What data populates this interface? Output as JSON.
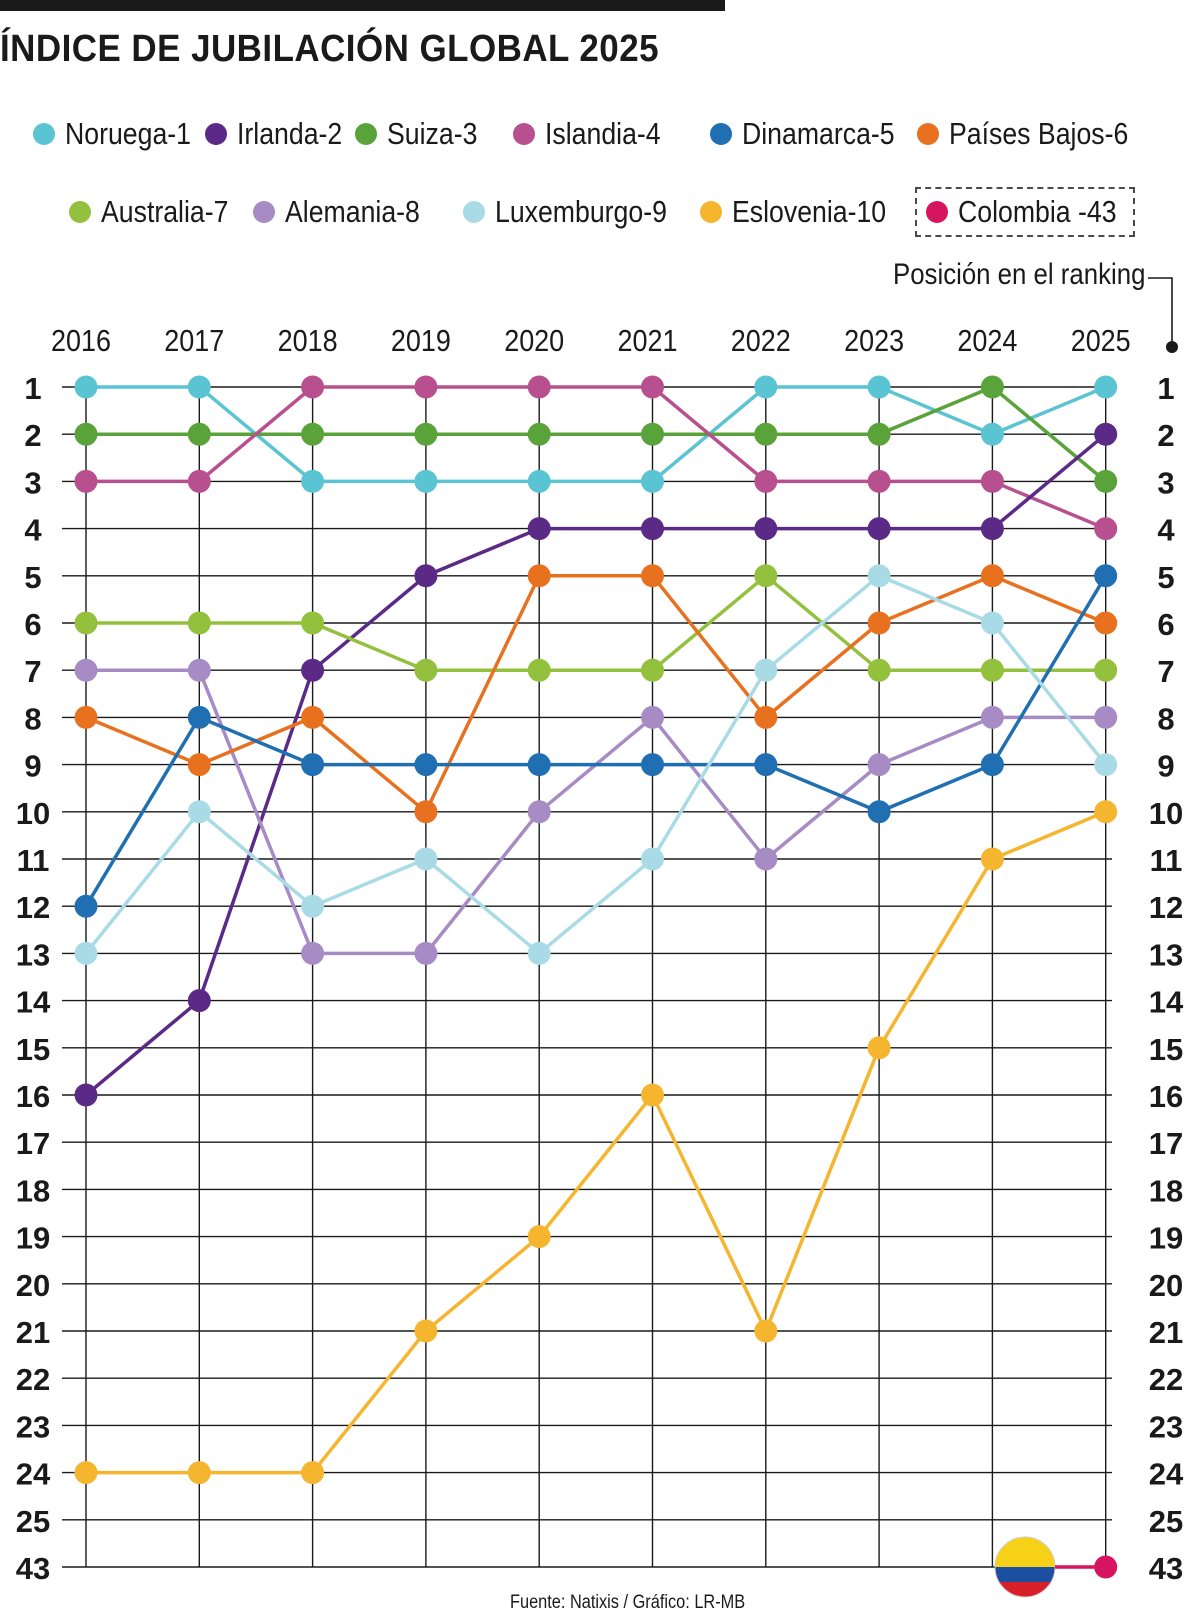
{
  "title": "ÍNDICE DE JUBILACIÓN GLOBAL 2025",
  "ranking_note": "Posición en el ranking",
  "source": "Fuente: Natixis / Gráfico: LR-MB",
  "legend": [
    {
      "label": "Noruega-1",
      "color": "#5bc4d3"
    },
    {
      "label": "Irlanda-2",
      "color": "#5b2a86"
    },
    {
      "label": "Suiza-3",
      "color": "#5aa33a"
    },
    {
      "label": "Islandia-4",
      "color": "#b8508f"
    },
    {
      "label": "Dinamarca-5",
      "color": "#1f6fb2"
    },
    {
      "label": "Países Bajos-6",
      "color": "#e8711f"
    },
    {
      "label": "Australia-7",
      "color": "#93c13d"
    },
    {
      "label": "Alemania-8",
      "color": "#a78bc4"
    },
    {
      "label": "Luxemburgo-9",
      "color": "#a9dbe6"
    },
    {
      "label": "Eslovenia-10",
      "color": "#f5b52e"
    },
    {
      "label": "Colombia -43",
      "color": "#d6145f"
    }
  ],
  "chart_data": {
    "type": "line",
    "title": "ÍNDICE DE JUBILACIÓN GLOBAL 2025",
    "xlabel": "",
    "ylabel": "Posición en el ranking",
    "x": [
      "2016",
      "2017",
      "2018",
      "2019",
      "2020",
      "2021",
      "2022",
      "2023",
      "2024",
      "2025"
    ],
    "y_ticks": [
      "1",
      "2",
      "3",
      "4",
      "5",
      "6",
      "7",
      "8",
      "9",
      "10",
      "11",
      "12",
      "13",
      "14",
      "15",
      "16",
      "17",
      "18",
      "19",
      "20",
      "21",
      "22",
      "23",
      "24",
      "25",
      "43"
    ],
    "y_inverted": true,
    "series": [
      {
        "name": "Noruega",
        "color": "#5bc4d3",
        "values": [
          1,
          1,
          3,
          3,
          3,
          3,
          1,
          1,
          2,
          1
        ]
      },
      {
        "name": "Suiza",
        "color": "#5aa33a",
        "values": [
          2,
          2,
          2,
          2,
          2,
          2,
          2,
          2,
          1,
          3
        ]
      },
      {
        "name": "Islandia",
        "color": "#b8508f",
        "values": [
          3,
          3,
          1,
          1,
          1,
          1,
          3,
          3,
          3,
          4
        ]
      },
      {
        "name": "Irlanda",
        "color": "#5b2a86",
        "values": [
          16,
          14,
          7,
          5,
          4,
          4,
          4,
          4,
          4,
          2
        ]
      },
      {
        "name": "Australia",
        "color": "#93c13d",
        "values": [
          6,
          6,
          6,
          7,
          7,
          7,
          5,
          7,
          7,
          7
        ]
      },
      {
        "name": "Alemania",
        "color": "#a78bc4",
        "values": [
          7,
          7,
          13,
          13,
          10,
          8,
          11,
          9,
          8,
          8
        ]
      },
      {
        "name": "Países Bajos",
        "color": "#e8711f",
        "values": [
          8,
          9,
          8,
          10,
          5,
          5,
          8,
          6,
          5,
          6
        ]
      },
      {
        "name": "Dinamarca",
        "color": "#1f6fb2",
        "values": [
          12,
          8,
          9,
          9,
          9,
          9,
          9,
          10,
          9,
          5
        ]
      },
      {
        "name": "Luxemburgo",
        "color": "#a9dbe6",
        "values": [
          13,
          10,
          12,
          11,
          13,
          11,
          7,
          5,
          6,
          9
        ]
      },
      {
        "name": "Eslovenia",
        "color": "#f5b52e",
        "values": [
          24,
          24,
          24,
          21,
          19,
          16,
          21,
          15,
          11,
          10
        ]
      },
      {
        "name": "Colombia",
        "color": "#d6145f",
        "values": [
          null,
          null,
          null,
          null,
          null,
          null,
          null,
          null,
          null,
          43
        ]
      }
    ]
  }
}
